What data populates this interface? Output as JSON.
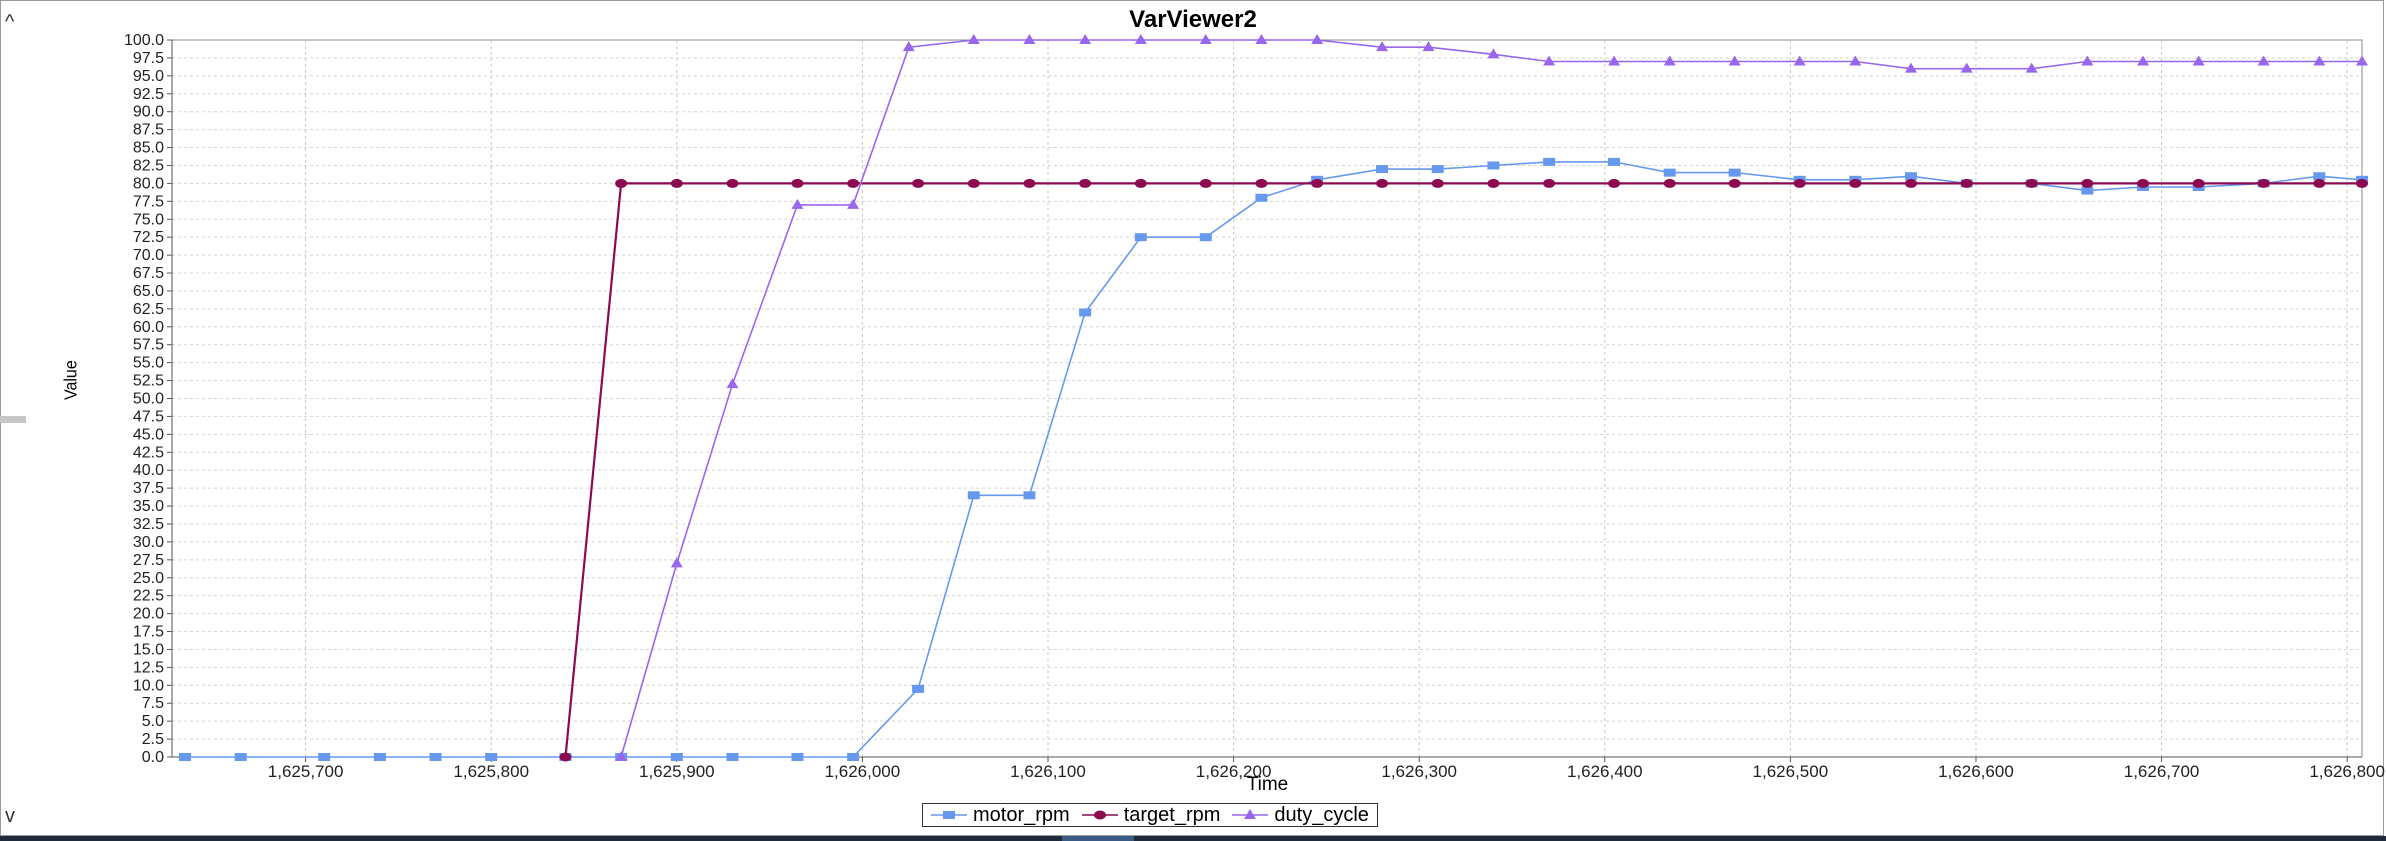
{
  "window": {
    "scroll_up_glyph": "^",
    "scroll_down_glyph": "v"
  },
  "chart_data": {
    "type": "line",
    "title": "VarViewer2",
    "xlabel": "Time",
    "ylabel": "Value",
    "xlim": [
      1625628,
      1626808
    ],
    "ylim": [
      0,
      100
    ],
    "x_ticks": [
      1625700,
      1625800,
      1625900,
      1626000,
      1626100,
      1626200,
      1626300,
      1626400,
      1626500,
      1626600,
      1626700,
      1626800
    ],
    "x_tick_labels": [
      "1,625,700",
      "1,625,800",
      "1,625,900",
      "1,626,000",
      "1,626,100",
      "1,626,200",
      "1,626,300",
      "1,626,400",
      "1,626,500",
      "1,626,600",
      "1,626,700",
      "1,626,800"
    ],
    "y_ticks": [
      0,
      2.5,
      5,
      7.5,
      10,
      12.5,
      15,
      17.5,
      20,
      22.5,
      25,
      27.5,
      30,
      32.5,
      35,
      37.5,
      40,
      42.5,
      45,
      47.5,
      50,
      52.5,
      55,
      57.5,
      60,
      62.5,
      65,
      67.5,
      70,
      72.5,
      75,
      77.5,
      80,
      82.5,
      85,
      87.5,
      90,
      92.5,
      95,
      97.5,
      100
    ],
    "y_tick_labels": [
      "0.0",
      "2.5",
      "5.0",
      "7.5",
      "10.0",
      "12.5",
      "15.0",
      "17.5",
      "20.0",
      "22.5",
      "25.0",
      "27.5",
      "30.0",
      "32.5",
      "35.0",
      "37.5",
      "40.0",
      "42.5",
      "45.0",
      "47.5",
      "50.0",
      "52.5",
      "55.0",
      "57.5",
      "60.0",
      "62.5",
      "65.0",
      "67.5",
      "70.0",
      "72.5",
      "75.0",
      "77.5",
      "80.0",
      "82.5",
      "85.0",
      "87.5",
      "90.0",
      "92.5",
      "95.0",
      "97.5",
      "100.0"
    ],
    "grid": true,
    "legend_position": "bottom",
    "series": [
      {
        "name": "motor_rpm",
        "color": "#6699ee",
        "marker": "square",
        "points": [
          [
            1625635,
            0
          ],
          [
            1625665,
            0
          ],
          [
            1625710,
            0
          ],
          [
            1625740,
            0
          ],
          [
            1625770,
            0
          ],
          [
            1625800,
            0
          ],
          [
            1625840,
            0
          ],
          [
            1625870,
            0
          ],
          [
            1625900,
            0
          ],
          [
            1625930,
            0
          ],
          [
            1625965,
            0
          ],
          [
            1625995,
            0
          ],
          [
            1626030,
            9.5
          ],
          [
            1626060,
            36.5
          ],
          [
            1626090,
            36.5
          ],
          [
            1626120,
            62
          ],
          [
            1626150,
            72.5
          ],
          [
            1626185,
            72.5
          ],
          [
            1626215,
            78
          ],
          [
            1626245,
            80.5
          ],
          [
            1626280,
            82
          ],
          [
            1626310,
            82
          ],
          [
            1626340,
            82.5
          ],
          [
            1626370,
            83
          ],
          [
            1626405,
            83
          ],
          [
            1626435,
            81.5
          ],
          [
            1626470,
            81.5
          ],
          [
            1626505,
            80.5
          ],
          [
            1626535,
            80.5
          ],
          [
            1626565,
            81
          ],
          [
            1626595,
            80
          ],
          [
            1626630,
            80
          ],
          [
            1626660,
            79
          ],
          [
            1626690,
            79.5
          ],
          [
            1626720,
            79.5
          ],
          [
            1626755,
            80
          ],
          [
            1626785,
            81
          ],
          [
            1626808,
            80.5
          ]
        ]
      },
      {
        "name": "target_rpm",
        "color": "#8b0a50",
        "marker": "circle",
        "points": [
          [
            1625840,
            0
          ],
          [
            1625870,
            80
          ],
          [
            1625900,
            80
          ],
          [
            1625930,
            80
          ],
          [
            1625965,
            80
          ],
          [
            1625995,
            80
          ],
          [
            1626030,
            80
          ],
          [
            1626060,
            80
          ],
          [
            1626090,
            80
          ],
          [
            1626120,
            80
          ],
          [
            1626150,
            80
          ],
          [
            1626185,
            80
          ],
          [
            1626215,
            80
          ],
          [
            1626245,
            80
          ],
          [
            1626280,
            80
          ],
          [
            1626310,
            80
          ],
          [
            1626340,
            80
          ],
          [
            1626370,
            80
          ],
          [
            1626405,
            80
          ],
          [
            1626435,
            80
          ],
          [
            1626470,
            80
          ],
          [
            1626505,
            80
          ],
          [
            1626535,
            80
          ],
          [
            1626565,
            80
          ],
          [
            1626595,
            80
          ],
          [
            1626630,
            80
          ],
          [
            1626660,
            80
          ],
          [
            1626690,
            80
          ],
          [
            1626720,
            80
          ],
          [
            1626755,
            80
          ],
          [
            1626785,
            80
          ],
          [
            1626808,
            80
          ]
        ]
      },
      {
        "name": "duty_cycle",
        "color": "#9966ee",
        "marker": "triangle",
        "points": [
          [
            1625870,
            0
          ],
          [
            1625900,
            27
          ],
          [
            1625930,
            52
          ],
          [
            1625965,
            77
          ],
          [
            1625995,
            77
          ],
          [
            1626025,
            99
          ],
          [
            1626060,
            100
          ],
          [
            1626090,
            100
          ],
          [
            1626120,
            100
          ],
          [
            1626150,
            100
          ],
          [
            1626185,
            100
          ],
          [
            1626215,
            100
          ],
          [
            1626245,
            100
          ],
          [
            1626280,
            99
          ],
          [
            1626305,
            99
          ],
          [
            1626340,
            98
          ],
          [
            1626370,
            97
          ],
          [
            1626405,
            97
          ],
          [
            1626435,
            97
          ],
          [
            1626470,
            97
          ],
          [
            1626505,
            97
          ],
          [
            1626535,
            97
          ],
          [
            1626565,
            96
          ],
          [
            1626595,
            96
          ],
          [
            1626630,
            96
          ],
          [
            1626660,
            97
          ],
          [
            1626690,
            97
          ],
          [
            1626720,
            97
          ],
          [
            1626755,
            97
          ],
          [
            1626785,
            97
          ],
          [
            1626808,
            97
          ]
        ]
      }
    ]
  }
}
